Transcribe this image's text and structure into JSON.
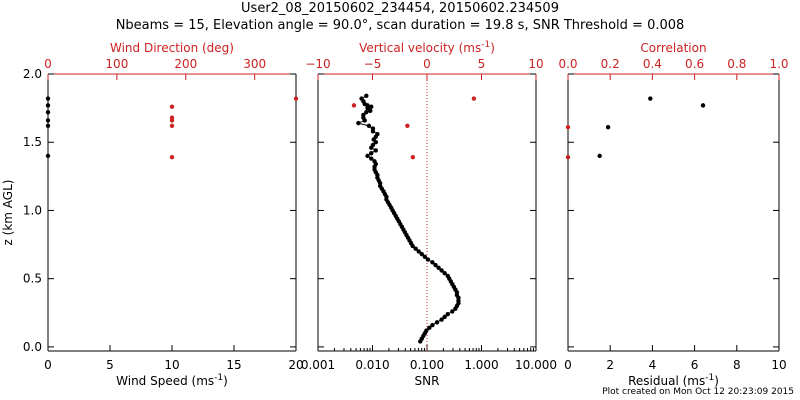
{
  "title_line1": "User2_08_20150602_234454, 20150602.234509",
  "title_line2": "Nbeams = 15, Elevation angle = 90.0°, scan duration = 19.8 s, SNR Threshold = 0.008",
  "footer": "Plot created on Mon Oct 12 20:23:09 2015",
  "colors": {
    "axis": "#000000",
    "accent": "#cc2222",
    "points": "#000000"
  },
  "y_axis": {
    "label": "z (km AGL)",
    "ticks": [
      "0.0",
      "0.5",
      "1.0",
      "1.5",
      "2.0"
    ],
    "tick_values": [
      0.0,
      0.5,
      1.0,
      1.5,
      2.0
    ],
    "range": [
      -0.03,
      2.0
    ]
  },
  "chart_data": [
    {
      "type": "scatter",
      "panel": "left",
      "top_axis": {
        "label": "Wind Direction (deg)",
        "range": [
          0,
          360
        ],
        "ticks": [
          "0",
          "100",
          "200",
          "300"
        ],
        "tick_values": [
          0,
          100,
          200,
          300
        ],
        "color": "#cc2222"
      },
      "bottom_axis": {
        "label": "Wind Speed (ms",
        "label_sup": "-1",
        "label_tail": ")",
        "range": [
          0,
          20
        ],
        "ticks": [
          "0",
          "5",
          "10",
          "15",
          "20"
        ],
        "tick_values": [
          0,
          5,
          10,
          15,
          20
        ]
      },
      "series": [
        {
          "axis": "bottom",
          "color": "#000000",
          "points": [
            {
              "x": 0.0,
              "y": 1.82
            },
            {
              "x": 0.0,
              "y": 1.77
            },
            {
              "x": 0.0,
              "y": 1.72
            },
            {
              "x": 0.0,
              "y": 1.66
            },
            {
              "x": 0.0,
              "y": 1.62
            },
            {
              "x": 0.0,
              "y": 1.4
            }
          ]
        },
        {
          "axis": "top",
          "color": "#cc2222",
          "points": [
            {
              "x": 180,
              "y": 1.76
            },
            {
              "x": 180,
              "y": 1.68
            },
            {
              "x": 180,
              "y": 1.66
            },
            {
              "x": 180,
              "y": 1.62
            },
            {
              "x": 180,
              "y": 1.39
            },
            {
              "x": 360,
              "y": 1.82
            }
          ]
        }
      ]
    },
    {
      "type": "line",
      "panel": "middle",
      "top_axis": {
        "label": "Vertical velocity (ms",
        "label_sup": "-1",
        "label_tail": ")",
        "range": [
          -10,
          10
        ],
        "ticks": [
          "−10",
          "−5",
          "0",
          "5",
          "10"
        ],
        "tick_values": [
          -10,
          -5,
          0,
          5,
          10
        ],
        "color": "#cc2222"
      },
      "bottom_axis": {
        "label": "SNR",
        "scale": "log",
        "range": [
          0.001,
          10
        ],
        "ticks": [
          "0.001",
          "0.010",
          "0.100",
          "1.000",
          "10.000"
        ],
        "tick_values": [
          0.001,
          0.01,
          0.1,
          1,
          10
        ]
      },
      "zero_line": 0,
      "series": [
        {
          "axis": "bottom",
          "color": "#000000",
          "points": [
            {
              "x": 0.0077,
              "y": 1.84
            },
            {
              "x": 0.0063,
              "y": 1.82
            },
            {
              "x": 0.0068,
              "y": 1.8
            },
            {
              "x": 0.0072,
              "y": 1.78
            },
            {
              "x": 0.0081,
              "y": 1.77
            },
            {
              "x": 0.0095,
              "y": 1.76
            },
            {
              "x": 0.0081,
              "y": 1.75
            },
            {
              "x": 0.0091,
              "y": 1.73
            },
            {
              "x": 0.0077,
              "y": 1.72
            },
            {
              "x": 0.0068,
              "y": 1.7
            },
            {
              "x": 0.0068,
              "y": 1.68
            },
            {
              "x": 0.0072,
              "y": 1.66
            },
            {
              "x": 0.0055,
              "y": 1.64
            },
            {
              "x": 0.0086,
              "y": 1.62
            },
            {
              "x": 0.0102,
              "y": 1.6
            },
            {
              "x": 0.0102,
              "y": 1.58
            },
            {
              "x": 0.0123,
              "y": 1.56
            },
            {
              "x": 0.0115,
              "y": 1.54
            },
            {
              "x": 0.0105,
              "y": 1.52
            },
            {
              "x": 0.0115,
              "y": 1.5
            },
            {
              "x": 0.0102,
              "y": 1.48
            },
            {
              "x": 0.0095,
              "y": 1.46
            },
            {
              "x": 0.0115,
              "y": 1.44
            },
            {
              "x": 0.0095,
              "y": 1.42
            },
            {
              "x": 0.0081,
              "y": 1.4
            },
            {
              "x": 0.0095,
              "y": 1.38
            },
            {
              "x": 0.0109,
              "y": 1.36
            },
            {
              "x": 0.0115,
              "y": 1.34
            },
            {
              "x": 0.0109,
              "y": 1.32
            },
            {
              "x": 0.0109,
              "y": 1.3
            },
            {
              "x": 0.0115,
              "y": 1.28
            },
            {
              "x": 0.0123,
              "y": 1.26
            },
            {
              "x": 0.0123,
              "y": 1.24
            },
            {
              "x": 0.013,
              "y": 1.22
            },
            {
              "x": 0.0138,
              "y": 1.2
            },
            {
              "x": 0.0138,
              "y": 1.18
            },
            {
              "x": 0.0148,
              "y": 1.16
            },
            {
              "x": 0.0159,
              "y": 1.14
            },
            {
              "x": 0.0169,
              "y": 1.12
            },
            {
              "x": 0.018,
              "y": 1.1
            },
            {
              "x": 0.018,
              "y": 1.08
            },
            {
              "x": 0.0193,
              "y": 1.06
            },
            {
              "x": 0.0206,
              "y": 1.04
            },
            {
              "x": 0.022,
              "y": 1.02
            },
            {
              "x": 0.0234,
              "y": 1.0
            },
            {
              "x": 0.025,
              "y": 0.98
            },
            {
              "x": 0.0267,
              "y": 0.96
            },
            {
              "x": 0.0285,
              "y": 0.94
            },
            {
              "x": 0.0304,
              "y": 0.92
            },
            {
              "x": 0.0324,
              "y": 0.9
            },
            {
              "x": 0.0346,
              "y": 0.88
            },
            {
              "x": 0.0369,
              "y": 0.86
            },
            {
              "x": 0.0394,
              "y": 0.84
            },
            {
              "x": 0.042,
              "y": 0.82
            },
            {
              "x": 0.0448,
              "y": 0.8
            },
            {
              "x": 0.0478,
              "y": 0.78
            },
            {
              "x": 0.051,
              "y": 0.76
            },
            {
              "x": 0.0544,
              "y": 0.74
            },
            {
              "x": 0.0619,
              "y": 0.72
            },
            {
              "x": 0.0705,
              "y": 0.7
            },
            {
              "x": 0.0802,
              "y": 0.68
            },
            {
              "x": 0.0913,
              "y": 0.66
            },
            {
              "x": 0.1039,
              "y": 0.64
            },
            {
              "x": 0.1258,
              "y": 0.62
            },
            {
              "x": 0.1432,
              "y": 0.6
            },
            {
              "x": 0.163,
              "y": 0.58
            },
            {
              "x": 0.1855,
              "y": 0.56
            },
            {
              "x": 0.211,
              "y": 0.54
            },
            {
              "x": 0.2402,
              "y": 0.52
            },
            {
              "x": 0.2562,
              "y": 0.5
            },
            {
              "x": 0.2733,
              "y": 0.48
            },
            {
              "x": 0.2916,
              "y": 0.46
            },
            {
              "x": 0.311,
              "y": 0.44
            },
            {
              "x": 0.3318,
              "y": 0.42
            },
            {
              "x": 0.354,
              "y": 0.4
            },
            {
              "x": 0.354,
              "y": 0.38
            },
            {
              "x": 0.3776,
              "y": 0.36
            },
            {
              "x": 0.3776,
              "y": 0.34
            },
            {
              "x": 0.3776,
              "y": 0.32
            },
            {
              "x": 0.354,
              "y": 0.3
            },
            {
              "x": 0.3318,
              "y": 0.28
            },
            {
              "x": 0.2916,
              "y": 0.26
            },
            {
              "x": 0.2402,
              "y": 0.24
            },
            {
              "x": 0.211,
              "y": 0.22
            },
            {
              "x": 0.1855,
              "y": 0.2
            },
            {
              "x": 0.1528,
              "y": 0.18
            },
            {
              "x": 0.1258,
              "y": 0.16
            },
            {
              "x": 0.1105,
              "y": 0.14
            },
            {
              "x": 0.0974,
              "y": 0.12
            },
            {
              "x": 0.0913,
              "y": 0.1
            },
            {
              "x": 0.0855,
              "y": 0.08
            },
            {
              "x": 0.0802,
              "y": 0.06
            },
            {
              "x": 0.0752,
              "y": 0.04
            }
          ]
        },
        {
          "axis": "top",
          "color": "#cc2222",
          "points": [
            {
              "x": 4.3,
              "y": 1.82
            },
            {
              "x": -6.7,
              "y": 1.77
            },
            {
              "x": -1.8,
              "y": 1.62
            },
            {
              "x": -1.3,
              "y": 1.39
            }
          ]
        }
      ]
    },
    {
      "type": "scatter",
      "panel": "right",
      "top_axis": {
        "label": "Correlation",
        "range": [
          0,
          1
        ],
        "ticks": [
          "0.0",
          "0.2",
          "0.4",
          "0.6",
          "0.8",
          "1.0"
        ],
        "tick_values": [
          0,
          0.2,
          0.4,
          0.6,
          0.8,
          1.0
        ],
        "color": "#cc2222"
      },
      "bottom_axis": {
        "label": "Residual (ms",
        "label_sup": "-1",
        "label_tail": ")",
        "range": [
          0,
          10
        ],
        "ticks": [
          "0",
          "2",
          "4",
          "6",
          "8",
          "10"
        ],
        "tick_values": [
          0,
          2,
          4,
          6,
          8,
          10
        ]
      },
      "series": [
        {
          "axis": "bottom",
          "color": "#000000",
          "points": [
            {
              "x": 3.9,
              "y": 1.82
            },
            {
              "x": 6.4,
              "y": 1.77
            },
            {
              "x": 1.9,
              "y": 1.61
            },
            {
              "x": 1.5,
              "y": 1.4
            }
          ]
        },
        {
          "axis": "top",
          "color": "#cc2222",
          "points": [
            {
              "x": 0.0,
              "y": 1.61
            },
            {
              "x": 0.0,
              "y": 1.39
            }
          ]
        }
      ]
    }
  ]
}
